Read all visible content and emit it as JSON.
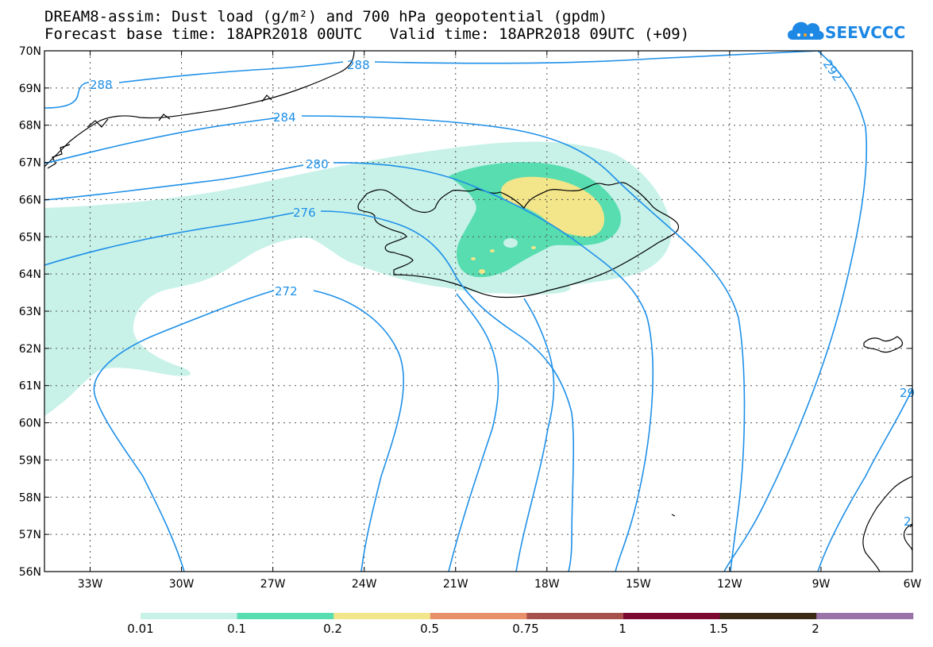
{
  "title_line1": "DREAM8-assim: Dust load (g/m²) and 700 hPa geopotential (gpdm)",
  "title_line2": "Forecast base time: 18APR2018 00UTC   Valid time: 18APR2018 09UTC (+09)",
  "logo_text": "SEEVCCC",
  "lat_labels": [
    "70N",
    "69N",
    "68N",
    "67N",
    "66N",
    "65N",
    "64N",
    "63N",
    "62N",
    "61N",
    "60N",
    "59N",
    "58N",
    "57N",
    "56N"
  ],
  "lon_labels": [
    "33W",
    "30W",
    "27W",
    "24W",
    "21W",
    "18W",
    "15W",
    "12W",
    "9W",
    "6W"
  ],
  "contour_labels": [
    "288",
    "288",
    "284",
    "280",
    "276",
    "272",
    "292",
    "29",
    "2"
  ],
  "colorbar": {
    "labels": [
      "0.01",
      "0.1",
      "0.2",
      "0.5",
      "0.75",
      "1",
      "1.5",
      "2"
    ],
    "colors": [
      "#c8f2e8",
      "#57ddb0",
      "#f2e58a",
      "#e8906a",
      "#a8504c",
      "#7c0a30",
      "#3a2a14",
      "#9a74a8"
    ]
  },
  "colors": {
    "contour": "#1e90e8",
    "coast": "#000000",
    "grid": "#555555"
  }
}
